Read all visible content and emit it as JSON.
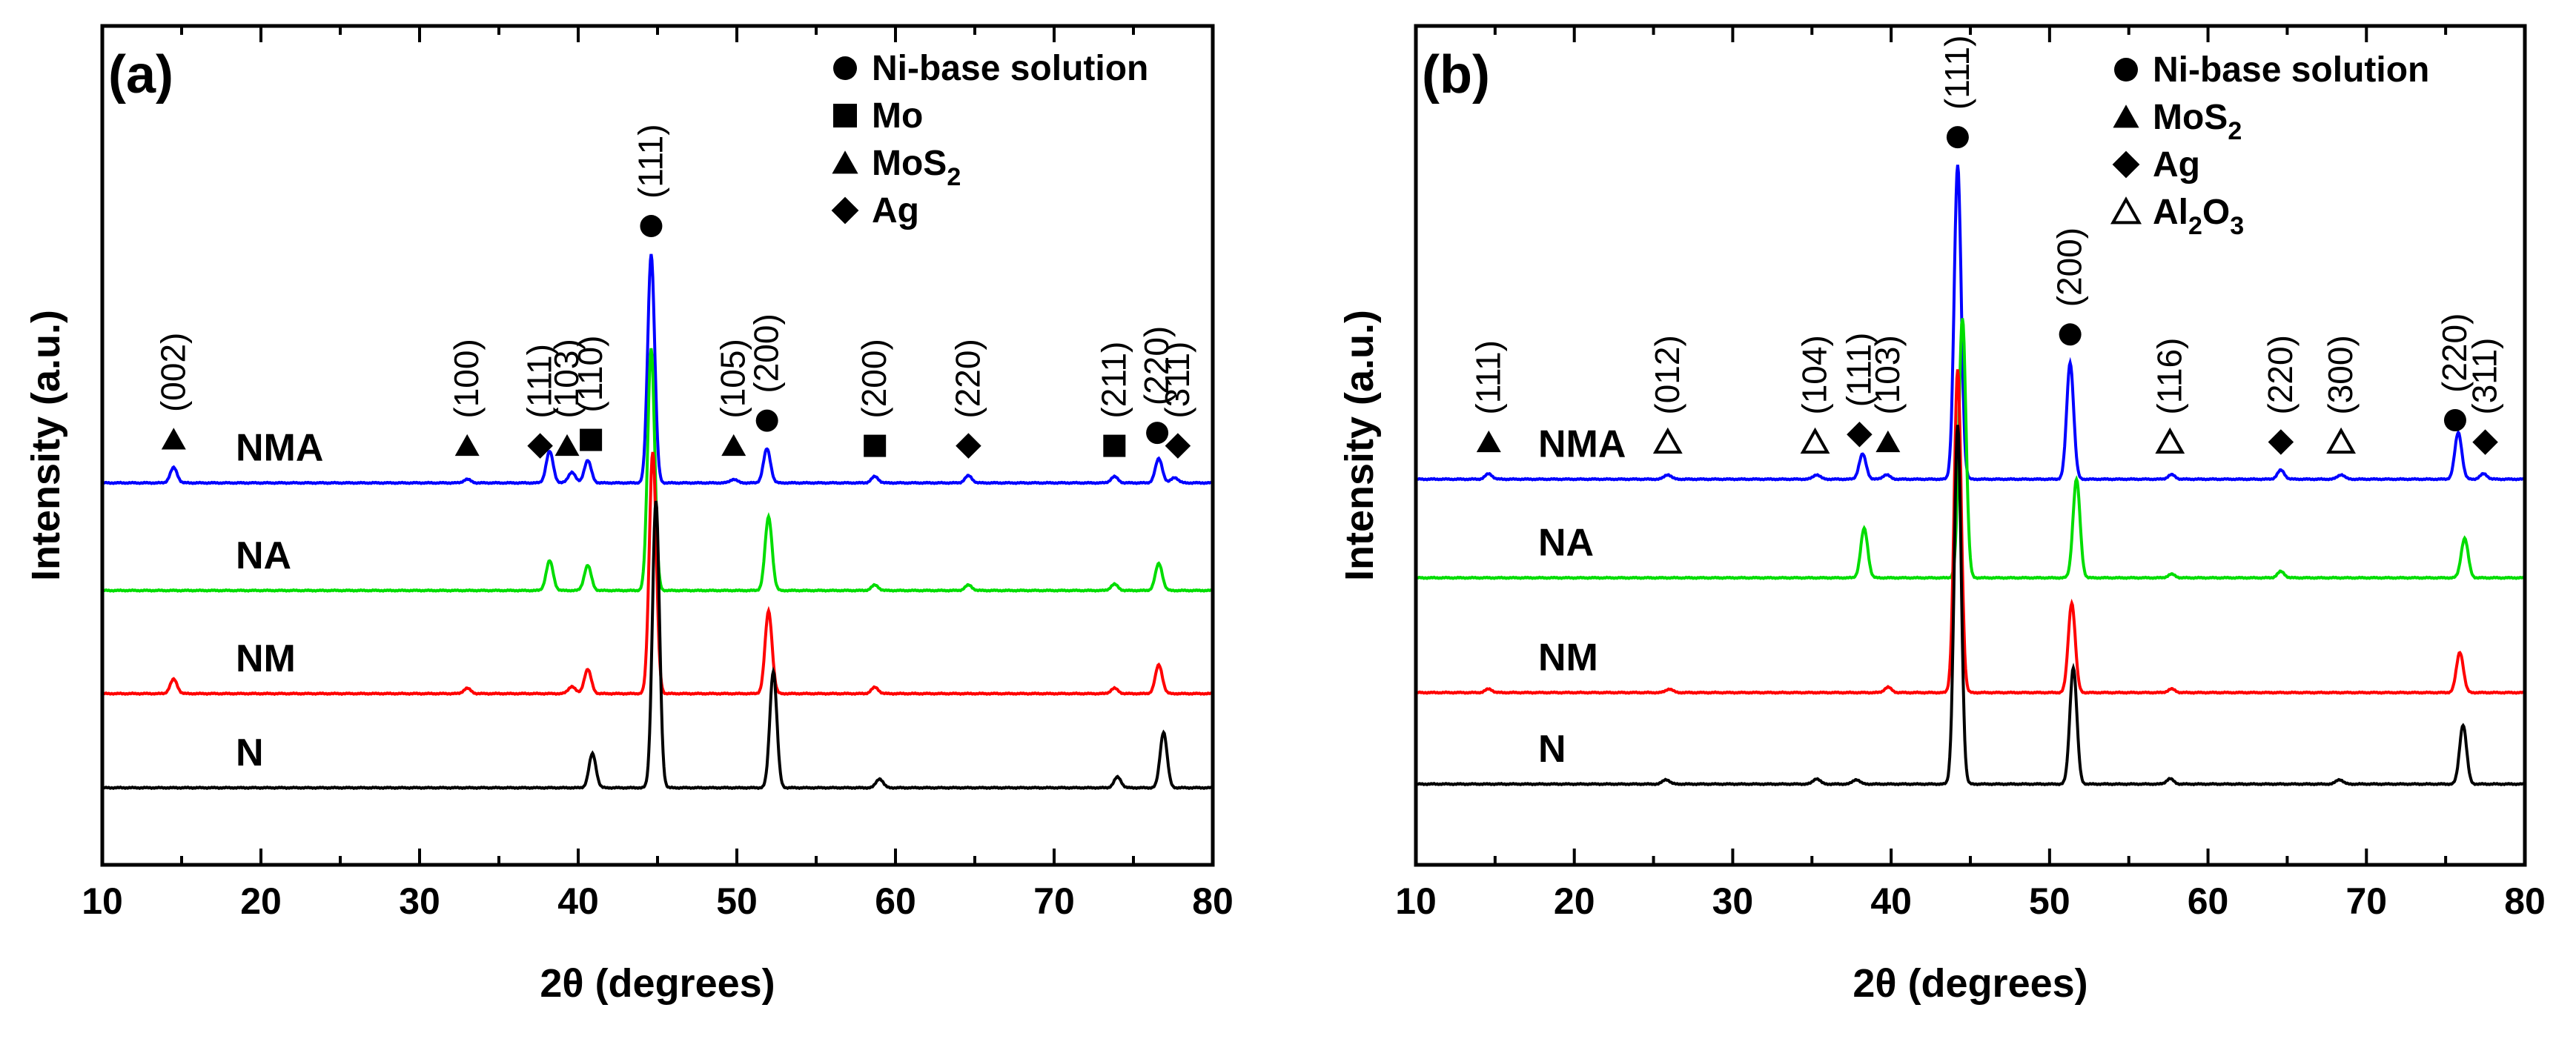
{
  "chart_data": [
    {
      "type": "line",
      "panel": "(a)",
      "xlabel": "2θ (degrees)",
      "ylabel": "Intensity (a.u.)",
      "xlim": [
        10,
        80
      ],
      "xticks": [
        10,
        20,
        30,
        40,
        50,
        60,
        70,
        80
      ],
      "legend": [
        {
          "marker": "circle",
          "text": "Ni-base solution",
          "sub": ""
        },
        {
          "marker": "square",
          "text": "Mo",
          "sub": ""
        },
        {
          "marker": "triangle",
          "text": "MoS",
          "sub": "2"
        },
        {
          "marker": "diamond",
          "text": "Ag",
          "sub": ""
        }
      ],
      "series": [
        {
          "name": "NMA",
          "color": "#0000ff",
          "baseline": 3.4,
          "peaks": [
            [
              14.5,
              0.17
            ],
            [
              33.0,
              0.04
            ],
            [
              38.2,
              0.35
            ],
            [
              39.6,
              0.12
            ],
            [
              40.6,
              0.25
            ],
            [
              44.6,
              2.55
            ],
            [
              49.8,
              0.04
            ],
            [
              51.9,
              0.38
            ],
            [
              58.7,
              0.07
            ],
            [
              64.6,
              0.08
            ],
            [
              73.8,
              0.07
            ],
            [
              76.6,
              0.27
            ],
            [
              77.6,
              0.06
            ]
          ]
        },
        {
          "name": "NA",
          "color": "#00dd00",
          "baseline": 2.2,
          "peaks": [
            [
              38.2,
              0.33
            ],
            [
              40.6,
              0.28
            ],
            [
              44.6,
              2.7
            ],
            [
              52.0,
              0.82
            ],
            [
              58.7,
              0.06
            ],
            [
              64.6,
              0.06
            ],
            [
              73.8,
              0.07
            ],
            [
              76.6,
              0.3
            ]
          ]
        },
        {
          "name": "NM",
          "color": "#ff0000",
          "baseline": 1.05,
          "peaks": [
            [
              14.5,
              0.16
            ],
            [
              33.0,
              0.06
            ],
            [
              39.6,
              0.08
            ],
            [
              40.6,
              0.27
            ],
            [
              44.7,
              2.7
            ],
            [
              52.0,
              0.92
            ],
            [
              58.7,
              0.07
            ],
            [
              73.8,
              0.06
            ],
            [
              76.6,
              0.32
            ]
          ]
        },
        {
          "name": "N",
          "color": "#000000",
          "baseline": 0.0,
          "peaks": [
            [
              40.9,
              0.38
            ],
            [
              44.9,
              3.2
            ],
            [
              52.3,
              1.3
            ],
            [
              59.0,
              0.1
            ],
            [
              74.0,
              0.12
            ],
            [
              76.9,
              0.62
            ]
          ]
        }
      ],
      "annotations": [
        {
          "x": 14.5,
          "marker": "triangle",
          "label": "(002)"
        },
        {
          "x": 33.0,
          "marker": "triangle",
          "label": "(100)"
        },
        {
          "x": 37.6,
          "marker": "diamond",
          "label": "(111)"
        },
        {
          "x": 39.3,
          "marker": "triangle",
          "label": "(103)"
        },
        {
          "x": 40.8,
          "marker": "square",
          "label": "(110)"
        },
        {
          "x": 44.6,
          "marker": "circle",
          "label": "(111)"
        },
        {
          "x": 49.8,
          "marker": "triangle",
          "label": "(105)"
        },
        {
          "x": 51.9,
          "marker": "circle",
          "label": "(200)"
        },
        {
          "x": 58.7,
          "marker": "square",
          "label": "(200)"
        },
        {
          "x": 64.6,
          "marker": "diamond",
          "label": "(220)"
        },
        {
          "x": 73.8,
          "marker": "square",
          "label": "(211)"
        },
        {
          "x": 76.5,
          "marker": "circle",
          "label": "(220)"
        },
        {
          "x": 77.8,
          "marker": "diamond",
          "label": "(311)"
        }
      ]
    },
    {
      "type": "line",
      "panel": "(b)",
      "xlabel": "2θ (degrees)",
      "ylabel": "Intensity (a.u.)",
      "xlim": [
        10,
        80
      ],
      "xticks": [
        10,
        20,
        30,
        40,
        50,
        60,
        70,
        80
      ],
      "legend": [
        {
          "marker": "circle",
          "text": "Ni-base solution",
          "sub": ""
        },
        {
          "marker": "triangle",
          "text": "MoS",
          "sub": "2"
        },
        {
          "marker": "diamond",
          "text": "Ag",
          "sub": ""
        },
        {
          "marker": "open-triangle",
          "text": "Al",
          "sub": "2",
          "text2": "O",
          "sub2": "3"
        }
      ],
      "series": [
        {
          "name": "NMA",
          "color": "#0000ff",
          "baseline": 3.4,
          "peaks": [
            [
              14.6,
              0.06
            ],
            [
              25.9,
              0.05
            ],
            [
              35.3,
              0.05
            ],
            [
              38.2,
              0.28
            ],
            [
              39.7,
              0.05
            ],
            [
              44.2,
              3.5
            ],
            [
              51.3,
              1.3
            ],
            [
              57.7,
              0.05
            ],
            [
              64.6,
              0.1
            ],
            [
              68.4,
              0.05
            ],
            [
              75.8,
              0.52
            ],
            [
              77.4,
              0.06
            ]
          ]
        },
        {
          "name": "NA",
          "color": "#00dd00",
          "baseline": 2.3,
          "peaks": [
            [
              38.3,
              0.55
            ],
            [
              44.5,
              2.9
            ],
            [
              51.7,
              1.1
            ],
            [
              57.7,
              0.04
            ],
            [
              64.6,
              0.07
            ],
            [
              76.2,
              0.44
            ]
          ]
        },
        {
          "name": "NM",
          "color": "#ff0000",
          "baseline": 1.02,
          "peaks": [
            [
              14.6,
              0.04
            ],
            [
              26.0,
              0.04
            ],
            [
              39.8,
              0.06
            ],
            [
              44.2,
              3.6
            ],
            [
              51.4,
              1.0
            ],
            [
              57.7,
              0.04
            ],
            [
              75.9,
              0.45
            ]
          ]
        },
        {
          "name": "N",
          "color": "#000000",
          "baseline": 0.0,
          "peaks": [
            [
              25.8,
              0.05
            ],
            [
              35.3,
              0.06
            ],
            [
              37.8,
              0.05
            ],
            [
              44.2,
              4.0
            ],
            [
              51.5,
              1.3
            ],
            [
              57.6,
              0.06
            ],
            [
              68.3,
              0.05
            ],
            [
              76.1,
              0.66
            ]
          ]
        }
      ],
      "annotations": [
        {
          "x": 14.6,
          "marker": "triangle",
          "label": "(111)"
        },
        {
          "x": 25.9,
          "marker": "open-triangle",
          "label": "(012)"
        },
        {
          "x": 35.2,
          "marker": "open-triangle",
          "label": "(104)"
        },
        {
          "x": 38.0,
          "marker": "diamond",
          "label": "(111)"
        },
        {
          "x": 39.8,
          "marker": "triangle",
          "label": "(103)"
        },
        {
          "x": 44.2,
          "marker": "circle",
          "label": "(111)"
        },
        {
          "x": 51.3,
          "marker": "circle",
          "label": "(200)"
        },
        {
          "x": 57.6,
          "marker": "open-triangle",
          "label": "(116)"
        },
        {
          "x": 64.6,
          "marker": "diamond",
          "label": "(220)"
        },
        {
          "x": 68.4,
          "marker": "open-triangle",
          "label": "(300)"
        },
        {
          "x": 75.6,
          "marker": "circle",
          "label": "(220)"
        },
        {
          "x": 77.5,
          "marker": "diamond",
          "label": "(311)"
        }
      ]
    }
  ]
}
